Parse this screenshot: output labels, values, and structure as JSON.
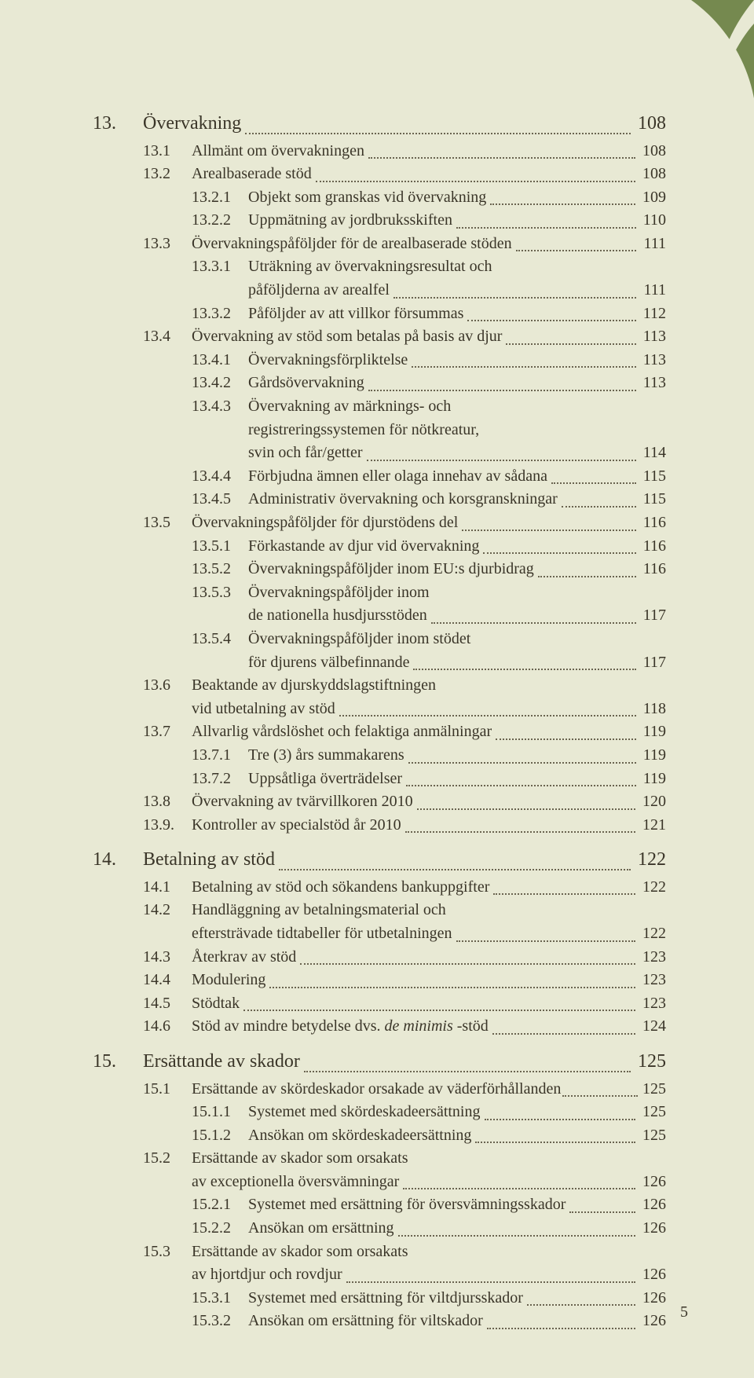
{
  "page_number": "5",
  "leaf": {
    "bg": "#75894f",
    "fg": "#e8e9d4"
  },
  "sections": [
    {
      "num": "13.",
      "title": "Övervakning",
      "page": "108",
      "children": [
        {
          "num": "13.1",
          "title": "Allmänt om övervakningen",
          "page": "108"
        },
        {
          "num": "13.2",
          "title": "Arealbaserade stöd",
          "page": "108",
          "children": [
            {
              "num": "13.2.1",
              "title": "Objekt som granskas vid övervakning",
              "page": "109"
            },
            {
              "num": "13.2.2",
              "title": "Uppmätning av jordbruksskiften",
              "page": "110"
            }
          ]
        },
        {
          "num": "13.3",
          "title": "Övervakningspåföljder för de arealbaserade stöden",
          "page": "111",
          "children": [
            {
              "num": "13.3.1",
              "title": "Uträkning av övervakningsresultat och",
              "cont": "påföljderna av arealfel",
              "page": "111"
            },
            {
              "num": "13.3.2",
              "title": "Påföljder av att villkor försummas",
              "page": "112"
            }
          ]
        },
        {
          "num": "13.4",
          "title": "Övervakning av stöd som betalas på basis av djur",
          "page": "113",
          "children": [
            {
              "num": "13.4.1",
              "title": "Övervakningsförpliktelse",
              "page": "113"
            },
            {
              "num": "13.4.2",
              "title": "Gårdsövervakning",
              "page": "113"
            },
            {
              "num": "13.4.3",
              "title": "Övervakning av märknings- och",
              "cont": "registreringssystemen för nötkreatur,",
              "cont2": "svin och får/getter",
              "page": "114"
            },
            {
              "num": "13.4.4",
              "title": "Förbjudna ämnen eller olaga innehav av sådana",
              "page": "115"
            },
            {
              "num": "13.4.5",
              "title": "Administrativ övervakning och korsgranskningar",
              "page": "115"
            }
          ]
        },
        {
          "num": "13.5",
          "title": "Övervakningspåföljder för djurstödens del",
          "page": "116",
          "children": [
            {
              "num": "13.5.1",
              "title": "Förkastande av djur vid övervakning",
              "page": "116"
            },
            {
              "num": "13.5.2",
              "title": "Övervakningspåföljder inom EU:s djurbidrag",
              "page": "116"
            },
            {
              "num": "13.5.3",
              "title": "Övervakningspåföljder inom",
              "cont": "de nationella husdjursstöden",
              "page": "117"
            },
            {
              "num": "13.5.4",
              "title": "Övervakningspåföljder inom stödet",
              "cont": "för djurens välbefinnande",
              "page": "117"
            }
          ]
        },
        {
          "num": "13.6",
          "title": "Beaktande av djurskyddslagstiftningen",
          "cont": "vid utbetalning av stöd",
          "page": "118"
        },
        {
          "num": "13.7",
          "title": "Allvarlig vårdslöshet och felaktiga anmälningar",
          "page": "119",
          "children": [
            {
              "num": "13.7.1",
              "title": "Tre (3) års summakarens",
              "page": "119"
            },
            {
              "num": "13.7.2",
              "title": "Uppsåtliga överträdelser",
              "page": "119"
            }
          ]
        },
        {
          "num": "13.8",
          "title": "Övervakning av tvärvillkoren 2010",
          "page": "120"
        },
        {
          "num": "13.9.",
          "title": "Kontroller av specialstöd år 2010",
          "page": "121"
        }
      ]
    },
    {
      "num": "14.",
      "title": "Betalning av stöd",
      "page": "122",
      "children": [
        {
          "num": "14.1",
          "title": "Betalning av stöd och sökandens bankuppgifter",
          "page": "122"
        },
        {
          "num": "14.2",
          "title": "Handläggning av betalningsmaterial och",
          "cont": "eftersträvade tidtabeller för utbetalningen",
          "page": "122"
        },
        {
          "num": "14.3",
          "title": "Återkrav av stöd",
          "page": "123"
        },
        {
          "num": "14.4",
          "title": "Modulering",
          "page": "123"
        },
        {
          "num": "14.5",
          "title": "Stödtak",
          "page": "123"
        },
        {
          "num": "14.6",
          "title_html": "Stöd av mindre betydelse dvs. <span class=\"italic\">de minimis</span> -stöd",
          "page": "124"
        }
      ]
    },
    {
      "num": "15.",
      "title": "Ersättande av skador",
      "page": "125",
      "children": [
        {
          "num": "15.1",
          "title": "Ersättande av skördeskador orsakade av väderförhållanden",
          "page": "125",
          "tight": true,
          "children": [
            {
              "num": "15.1.1",
              "title": "Systemet med skördeskadeersättning",
              "page": "125"
            },
            {
              "num": "15.1.2",
              "title": "Ansökan om skördeskadeersättning",
              "page": "125"
            }
          ]
        },
        {
          "num": "15.2",
          "title": "Ersättande av skador som orsakats",
          "cont": "av exceptionella översvämningar",
          "page": "126",
          "children": [
            {
              "num": "15.2.1",
              "title": "Systemet med ersättning för översvämningsskador",
              "page": "126"
            },
            {
              "num": "15.2.2",
              "title": "Ansökan om ersättning",
              "page": "126"
            }
          ]
        },
        {
          "num": "15.3",
          "title": "Ersättande av skador som orsakats",
          "cont": "av hjortdjur och rovdjur",
          "page": "126",
          "children": [
            {
              "num": "15.3.1",
              "title": "Systemet med ersättning för viltdjursskador",
              "page": "126"
            },
            {
              "num": "15.3.2",
              "title": "Ansökan om ersättning för viltskador",
              "page": "126"
            }
          ]
        }
      ]
    }
  ]
}
